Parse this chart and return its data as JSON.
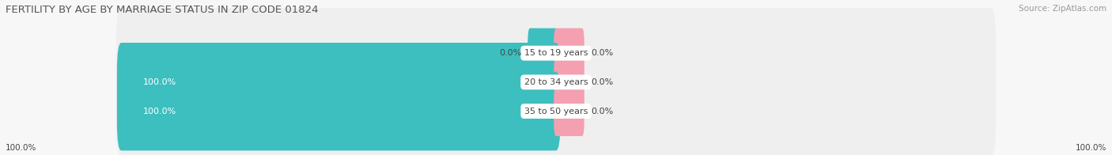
{
  "title": "FERTILITY BY AGE BY MARRIAGE STATUS IN ZIP CODE 01824",
  "source": "Source: ZipAtlas.com",
  "categories": [
    "15 to 19 years",
    "20 to 34 years",
    "35 to 50 years"
  ],
  "married_values": [
    0.0,
    100.0,
    100.0
  ],
  "unmarried_values": [
    0.0,
    0.0,
    0.0
  ],
  "married_color": "#3dbfbf",
  "unmarried_color": "#f4a0b0",
  "bar_bg_color": "#e0e0e0",
  "title_fontsize": 9.5,
  "label_fontsize": 8.0,
  "tick_fontsize": 7.5,
  "legend_fontsize": 8.5,
  "title_color": "#555555",
  "label_color": "#444444",
  "source_color": "#999999",
  "x_left_label": "100.0%",
  "x_right_label": "100.0%",
  "background_color": "#f7f7f7",
  "bar_bg_light": "#efefef"
}
